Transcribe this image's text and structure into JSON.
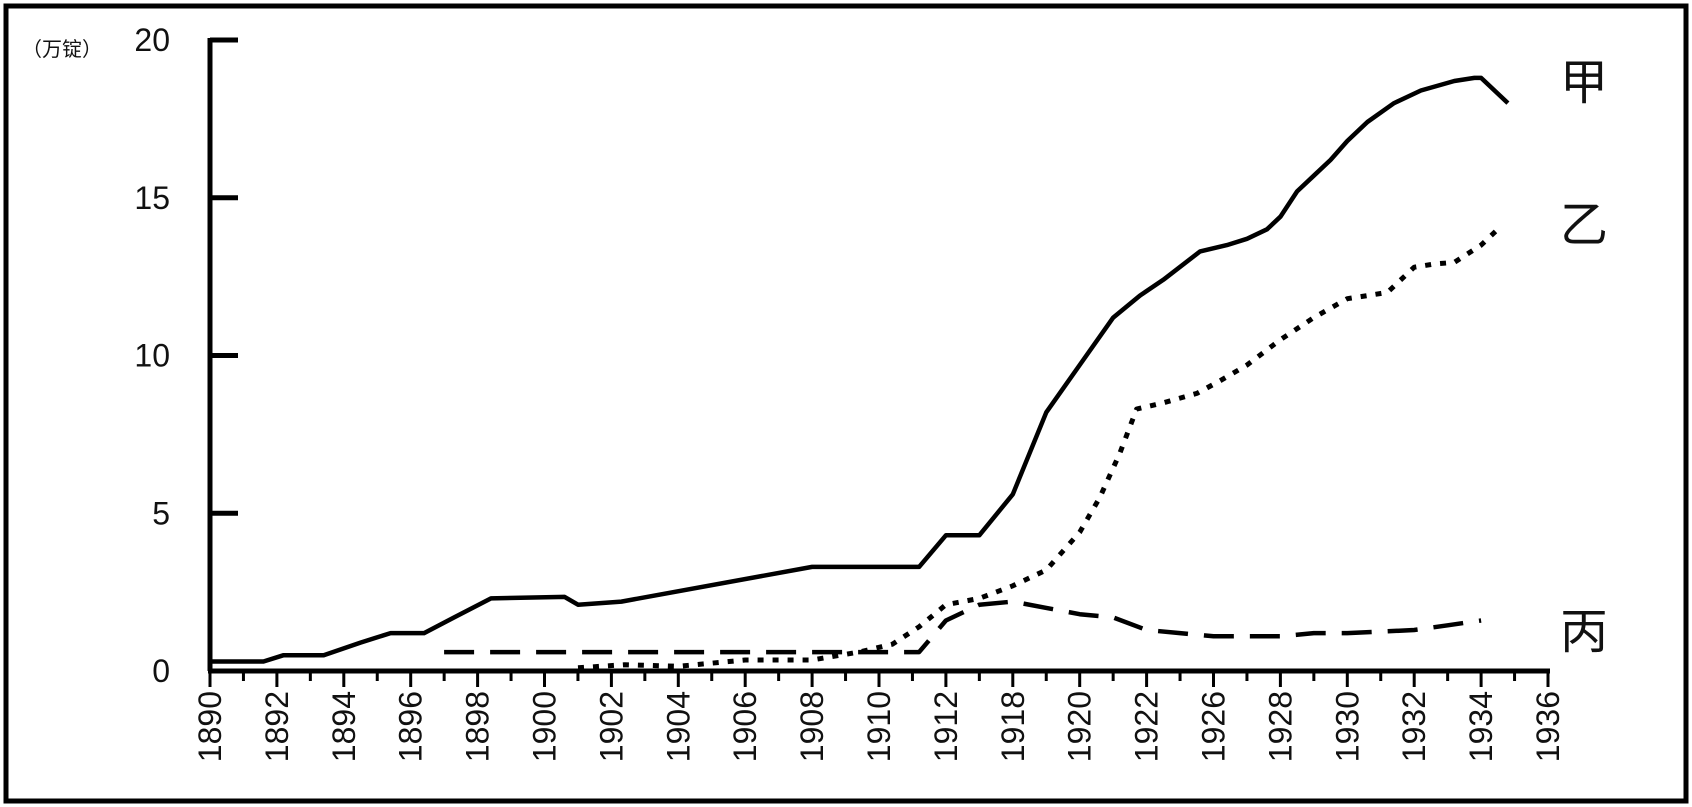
{
  "chart_data": {
    "type": "line",
    "title": "",
    "xlabel": "",
    "ylabel": "（万锭）",
    "ylim": [
      0,
      20
    ],
    "yticks": [
      0,
      5,
      10,
      15,
      20
    ],
    "xticks": [
      "1890",
      "1892",
      "1894",
      "1896",
      "1898",
      "1900",
      "1902",
      "1904",
      "1906",
      "1908",
      "1910",
      "1912",
      "1918",
      "1920",
      "1922",
      "1926",
      "1928",
      "1930",
      "1932",
      "1934",
      "1936"
    ],
    "grid": false,
    "legend": "none",
    "series": [
      {
        "name": "甲",
        "style": "solid",
        "points": [
          [
            0,
            0.3
          ],
          [
            1.6,
            0.3
          ],
          [
            2.2,
            0.5
          ],
          [
            3.4,
            0.5
          ],
          [
            4.5,
            0.9
          ],
          [
            5.4,
            1.2
          ],
          [
            6.4,
            1.2
          ],
          [
            7.3,
            1.7
          ],
          [
            8.4,
            2.3
          ],
          [
            10.6,
            2.35
          ],
          [
            11.0,
            2.1
          ],
          [
            12.3,
            2.2
          ],
          [
            18.0,
            3.3
          ],
          [
            19.8,
            3.3
          ],
          [
            21.2,
            3.3
          ],
          [
            22.0,
            4.3
          ],
          [
            23.0,
            4.3
          ],
          [
            24.0,
            5.6
          ],
          [
            25.0,
            8.2
          ],
          [
            26.0,
            9.7
          ],
          [
            27.0,
            11.2
          ],
          [
            27.8,
            11.9
          ],
          [
            28.5,
            12.4
          ],
          [
            29.6,
            13.3
          ],
          [
            30.4,
            13.5
          ],
          [
            31.0,
            13.7
          ],
          [
            31.6,
            14.0
          ],
          [
            32.0,
            14.4
          ],
          [
            32.5,
            15.2
          ],
          [
            33.0,
            15.7
          ],
          [
            33.5,
            16.2
          ],
          [
            34.0,
            16.8
          ],
          [
            34.6,
            17.4
          ],
          [
            35.4,
            18.0
          ],
          [
            36.2,
            18.4
          ],
          [
            37.2,
            18.7
          ],
          [
            37.8,
            18.8
          ],
          [
            38.0,
            18.8
          ],
          [
            38.8,
            18.0
          ]
        ]
      },
      {
        "name": "乙",
        "style": "dotted",
        "points": [
          [
            11.0,
            0.1
          ],
          [
            12.4,
            0.2
          ],
          [
            14.0,
            0.15
          ],
          [
            16.0,
            0.35
          ],
          [
            18.0,
            0.35
          ],
          [
            19.4,
            0.6
          ],
          [
            20.4,
            0.85
          ],
          [
            21.2,
            1.4
          ],
          [
            22.0,
            2.1
          ],
          [
            23.0,
            2.3
          ],
          [
            24.0,
            2.7
          ],
          [
            25.0,
            3.2
          ],
          [
            26.0,
            4.4
          ],
          [
            26.6,
            5.5
          ],
          [
            27.2,
            6.9
          ],
          [
            27.7,
            8.3
          ],
          [
            28.5,
            8.5
          ],
          [
            29.5,
            8.8
          ],
          [
            30.2,
            9.2
          ],
          [
            31.0,
            9.7
          ],
          [
            32.0,
            10.5
          ],
          [
            33.0,
            11.2
          ],
          [
            34.0,
            11.8
          ],
          [
            34.6,
            11.9
          ],
          [
            35.2,
            12.0
          ],
          [
            36.0,
            12.8
          ],
          [
            36.6,
            12.9
          ],
          [
            37.2,
            12.95
          ],
          [
            38.0,
            13.5
          ],
          [
            38.6,
            14.1
          ]
        ]
      },
      {
        "name": "丙",
        "style": "dashed",
        "points": [
          [
            7.0,
            0.6
          ],
          [
            21.2,
            0.6
          ],
          [
            22.0,
            1.6
          ],
          [
            23.0,
            2.1
          ],
          [
            24.0,
            2.2
          ],
          [
            25.0,
            2.0
          ],
          [
            26.0,
            1.8
          ],
          [
            27.0,
            1.7
          ],
          [
            28.0,
            1.3
          ],
          [
            29.0,
            1.2
          ],
          [
            30.0,
            1.1
          ],
          [
            31.0,
            1.1
          ],
          [
            32.0,
            1.1
          ],
          [
            33.0,
            1.2
          ],
          [
            34.0,
            1.2
          ],
          [
            35.0,
            1.25
          ],
          [
            36.0,
            1.3
          ],
          [
            37.0,
            1.45
          ],
          [
            38.0,
            1.6
          ]
        ]
      }
    ]
  }
}
